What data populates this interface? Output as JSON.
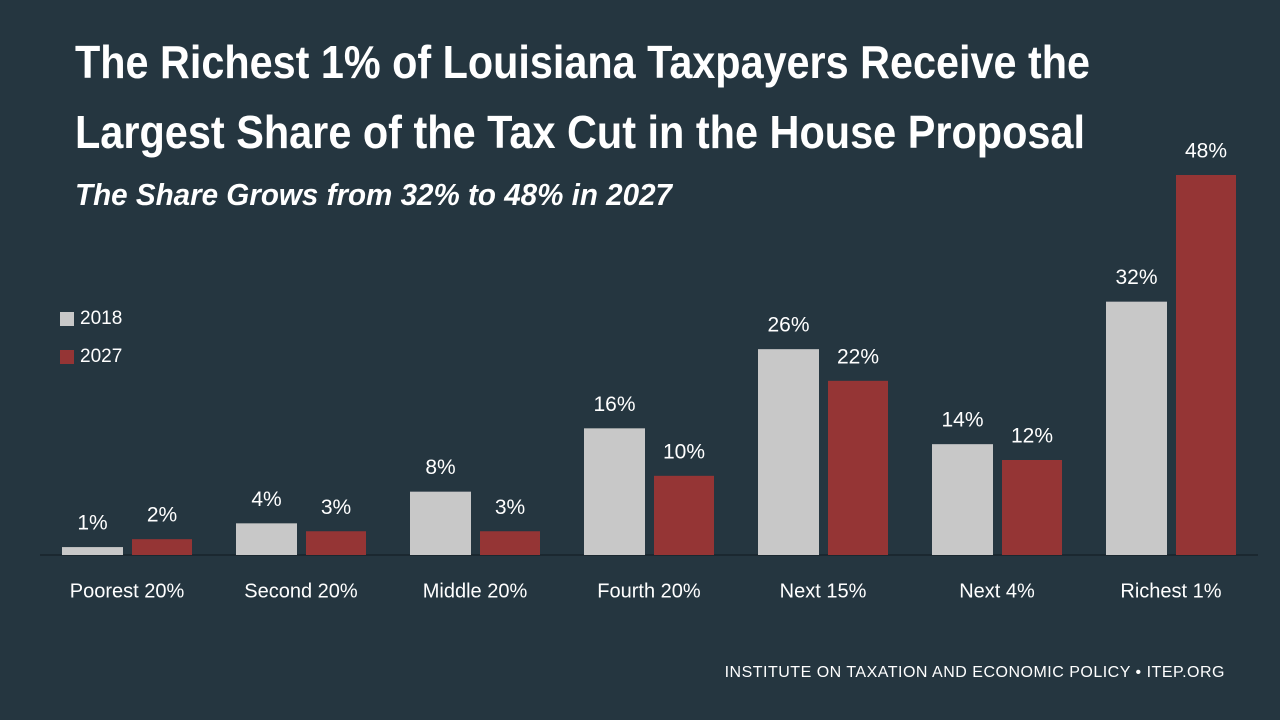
{
  "chart_data": {
    "type": "grouped_bar",
    "title": [
      "The Richest 1% of Louisiana Taxpayers Receive the",
      "Largest Share of the Tax Cut in the House Proposal"
    ],
    "subtitle": "The Share Grows from 32% to 48% in 2027",
    "categories": [
      "Poorest 20%",
      "Second 20%",
      "Middle 20%",
      "Fourth 20%",
      "Next 15%",
      "Next 4%",
      "Richest 1%"
    ],
    "series": [
      {
        "name": "2018",
        "color": "#c8c8c8",
        "values": [
          1,
          4,
          8,
          16,
          26,
          14,
          32
        ],
        "value_labels": [
          "1%",
          "4%",
          "8%",
          "16%",
          "26%",
          "14%",
          "32%"
        ]
      },
      {
        "name": "2027",
        "color": "#953535",
        "values": [
          2,
          3,
          3,
          10,
          22,
          12,
          48
        ],
        "value_labels": [
          "2%",
          "3%",
          "3%",
          "10%",
          "22%",
          "12%",
          "48%"
        ]
      }
    ],
    "legend": "left",
    "source": "INSTITUTE ON TAXATION AND ECONOMIC POLICY • ITEP.ORG"
  }
}
